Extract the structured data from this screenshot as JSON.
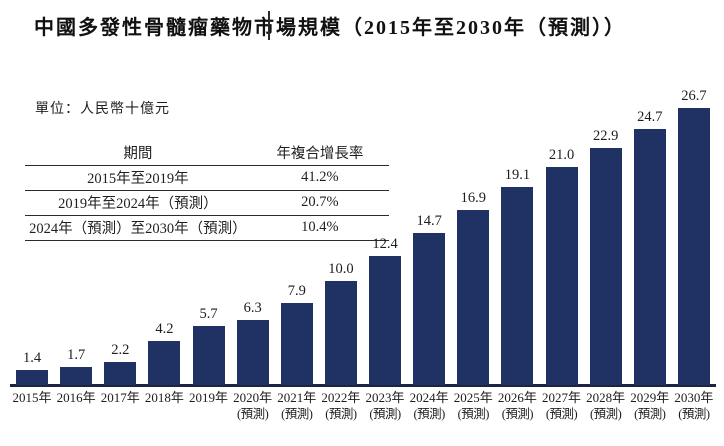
{
  "chart_data": {
    "type": "bar",
    "title": "中國多發性骨髓瘤藥物市場規模（2015年至2030年（預測））",
    "unit_label": "單位：人民幣十億元",
    "categories": [
      "2015年",
      "2016年",
      "2017年",
      "2018年",
      "2019年",
      "2020年",
      "2021年",
      "2022年",
      "2023年",
      "2024年",
      "2025年",
      "2026年",
      "2027年",
      "2028年",
      "2029年",
      "2030年"
    ],
    "category_sublabels": [
      "",
      "",
      "",
      "",
      "",
      "(預測)",
      "(預測)",
      "(預測)",
      "(預測)",
      "(預測)",
      "(預測)",
      "(預測)",
      "(預測)",
      "(預測)",
      "(預測)",
      "(預測)"
    ],
    "values": [
      1.4,
      1.7,
      2.2,
      4.2,
      5.7,
      6.3,
      7.9,
      10.0,
      12.4,
      14.7,
      16.9,
      19.1,
      21.0,
      22.9,
      24.7,
      26.7
    ],
    "value_labels": [
      "1.4",
      "1.7",
      "2.2",
      "4.2",
      "5.7",
      "6.3",
      "7.9",
      "10.0",
      "12.4",
      "14.7",
      "16.9",
      "19.1",
      "21.0",
      "22.9",
      "24.7",
      "26.7"
    ],
    "ylim": [
      0,
      28
    ],
    "bar_color": "#203263",
    "axis_color": "#1c2444",
    "grid": "off",
    "legend": "none",
    "xlabel": "",
    "ylabel": ""
  },
  "cagr_table": {
    "headers": [
      "期間",
      "年複合增長率"
    ],
    "rows": [
      {
        "period": "2015年至2019年",
        "cagr": "41.2%"
      },
      {
        "period": "2019年至2024年（預測）",
        "cagr": "20.7%"
      },
      {
        "period": "2024年（預測）至2030年（預測）",
        "cagr": "10.4%"
      }
    ]
  }
}
